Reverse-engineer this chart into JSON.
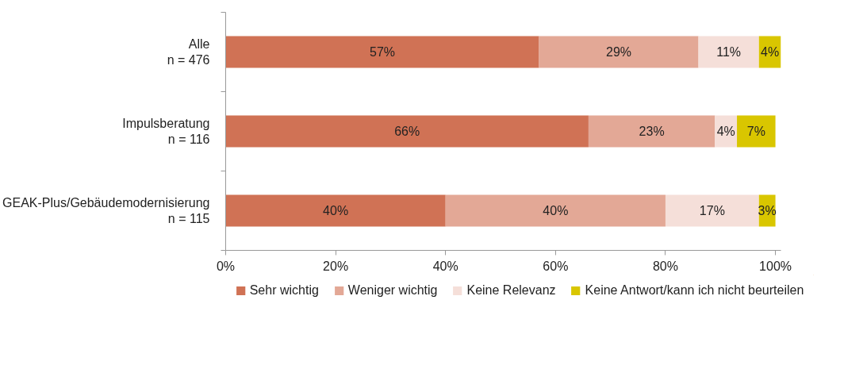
{
  "chart_data": {
    "type": "bar",
    "orientation": "horizontal",
    "stacked": true,
    "categories": [
      "Alle\nn = 476",
      "Impulsberatung\nn = 116",
      "GEAK-Plus/Gebäudemodernisierung\nn = 115"
    ],
    "series": [
      {
        "name": "Sehr wichtig",
        "color": "#d07255",
        "values": [
          57,
          66,
          40
        ],
        "value_labels": [
          "57%",
          "66%",
          "40%"
        ]
      },
      {
        "name": "Weniger wichtig",
        "color": "#e3a896",
        "values": [
          29,
          23,
          40
        ],
        "value_labels": [
          "29%",
          "23%",
          "40%"
        ]
      },
      {
        "name": "Keine Relevanz",
        "color": "#f5dfd9",
        "values": [
          11,
          4,
          17
        ],
        "value_labels": [
          "11%",
          "4%",
          "17%"
        ]
      },
      {
        "name": "Keine Antwort/kann ich nicht beurteilen",
        "color": "#d9c600",
        "values": [
          4,
          7,
          3
        ],
        "value_labels": [
          "4%",
          "7%",
          "3%"
        ]
      }
    ],
    "xlim": [
      0,
      101
    ],
    "xticks": [
      {
        "value": 0,
        "label": "0%"
      },
      {
        "value": 20,
        "label": "20%"
      },
      {
        "value": 40,
        "label": "40%"
      },
      {
        "value": 60,
        "label": "60%"
      },
      {
        "value": 80,
        "label": "80%"
      },
      {
        "value": 100,
        "label": "100%"
      }
    ],
    "grid": false,
    "legend": "bottom"
  }
}
